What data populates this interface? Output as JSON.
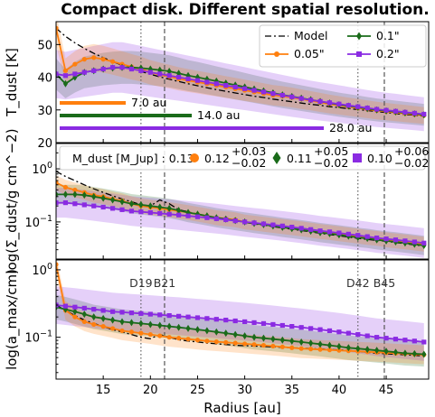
{
  "title": "Compact disk. Different spatial resolution.",
  "xlabel": "Radius [au]",
  "x_ticks": [
    "15",
    "20",
    "25",
    "30",
    "35",
    "40",
    "45"
  ],
  "colors": {
    "model": "#000000",
    "res005": "#ff7f0e",
    "res01": "#1a6b1a",
    "res02": "#8a2be2"
  },
  "legend": {
    "model": "Model",
    "res005": "0.05\"",
    "res01": "0.1\"",
    "res02": "0.2\""
  },
  "resolution_bars": [
    {
      "label": "7.0 au",
      "color_key": "res005",
      "length_au": 7.0
    },
    {
      "label": "14.0 au",
      "color_key": "res01",
      "length_au": 14.0
    },
    {
      "label": "28.0 au",
      "color_key": "res02",
      "length_au": 28.0
    }
  ],
  "gaps": [
    {
      "label": "D19",
      "r": 19.0,
      "style": "dotted"
    },
    {
      "label": "B21",
      "r": 21.5,
      "style": "dashed"
    },
    {
      "label": "D42",
      "r": 42.0,
      "style": "dotted"
    },
    {
      "label": "B45",
      "r": 44.8,
      "style": "dashed"
    }
  ],
  "mass_legend": {
    "model_label": "M_dust [M_Jup] : 0.13",
    "res005": {
      "value": "0.12",
      "plus": "+0.03",
      "minus": "−0.02"
    },
    "res01": {
      "value": "0.11",
      "plus": "+0.05",
      "minus": "−0.02"
    },
    "res02": {
      "value": "0.10",
      "plus": "+0.06",
      "minus": "−0.02"
    }
  },
  "chart_data": [
    {
      "type": "line",
      "panel": "temperature",
      "ylabel": "T_dust [K]",
      "xlim": [
        10,
        49.5
      ],
      "ylim": [
        20,
        57
      ],
      "yscale": "linear",
      "y_ticks": [
        "20",
        "30",
        "40",
        "50"
      ],
      "series": [
        {
          "name": "Model",
          "x": [
            10,
            11,
            12,
            13,
            14,
            15,
            16,
            17,
            18,
            19,
            20,
            21,
            22,
            23,
            24,
            25,
            26,
            27,
            28,
            29,
            30,
            31,
            32,
            33,
            34,
            35,
            36,
            37,
            38,
            39,
            40,
            41,
            42,
            43,
            44,
            45,
            46,
            47,
            48,
            49
          ],
          "y": [
            55,
            52.5,
            50.5,
            48.8,
            47.3,
            46.0,
            44.8,
            43.7,
            42.7,
            41.8,
            40.9,
            40.1,
            39.4,
            38.7,
            38.0,
            37.4,
            36.8,
            36.2,
            35.7,
            35.2,
            34.7,
            34.2,
            33.8,
            33.3,
            32.9,
            32.5,
            32.1,
            31.7,
            31.4,
            31.0,
            30.7,
            30.4,
            30.1,
            29.8,
            29.5,
            29.2,
            28.9,
            28.6,
            28.4,
            28.1
          ]
        },
        {
          "name": "0.05\"",
          "x": [
            10,
            11,
            12,
            13,
            14,
            15,
            16,
            17,
            18,
            19,
            20,
            21,
            22,
            23,
            24,
            25,
            26,
            27,
            28,
            29,
            30,
            31,
            32,
            33,
            34,
            35,
            36,
            37,
            38,
            39,
            40,
            41,
            42,
            43,
            44,
            45,
            46,
            47,
            48,
            49
          ],
          "y": [
            55,
            42,
            44,
            45.5,
            46,
            45.5,
            44.8,
            44,
            43.2,
            42.5,
            41.5,
            40.8,
            40.2,
            39.5,
            39,
            38.5,
            38,
            37.5,
            37,
            36.5,
            36,
            35.5,
            35,
            34.5,
            34.2,
            33.8,
            33.3,
            32.8,
            32.3,
            31.8,
            31.4,
            31,
            30.6,
            30.2,
            29.8,
            29.5,
            29.2,
            28.9,
            28.6,
            28.3
          ]
        },
        {
          "name": "0.1\"",
          "x": [
            10,
            11,
            12,
            13,
            14,
            15,
            16,
            17,
            18,
            19,
            20,
            21,
            22,
            23,
            24,
            25,
            26,
            27,
            28,
            29,
            30,
            31,
            32,
            33,
            34,
            35,
            36,
            37,
            38,
            39,
            40,
            41,
            42,
            43,
            44,
            45,
            46,
            47,
            48,
            49
          ],
          "y": [
            41,
            38,
            40,
            41.5,
            42,
            42.5,
            42.8,
            43,
            43,
            42.8,
            42.5,
            42.2,
            41.8,
            41.2,
            40.5,
            40,
            39.4,
            38.8,
            38.2,
            37.6,
            37,
            36.4,
            35.8,
            35.2,
            34.6,
            34.1,
            33.6,
            33.1,
            32.6,
            32.1,
            31.6,
            31.2,
            30.8,
            30.4,
            30,
            29.7,
            29.4,
            29.1,
            28.8,
            28.5
          ]
        },
        {
          "name": "0.2\"",
          "x": [
            10,
            11,
            12,
            13,
            14,
            15,
            16,
            17,
            18,
            19,
            20,
            21,
            22,
            23,
            24,
            25,
            26,
            27,
            28,
            29,
            30,
            31,
            32,
            33,
            34,
            35,
            36,
            37,
            38,
            39,
            40,
            41,
            42,
            43,
            44,
            45,
            46,
            47,
            48,
            49
          ],
          "y": [
            41,
            40.5,
            41,
            41.5,
            42,
            42.5,
            43,
            43,
            42.5,
            42,
            41.5,
            41,
            40.5,
            40,
            39.5,
            39,
            38.5,
            38,
            37.5,
            37,
            36.5,
            36,
            35.5,
            35,
            34.5,
            34,
            33.5,
            33,
            32.6,
            32.2,
            31.8,
            31.4,
            31,
            30.6,
            30.2,
            29.9,
            29.6,
            29.3,
            29,
            28.7
          ]
        }
      ]
    },
    {
      "type": "line",
      "panel": "surface_density",
      "ylabel": "log(Σ_dust/g cm^−2)",
      "xlim": [
        10,
        49.5
      ],
      "ylim": [
        0.02,
        3
      ],
      "yscale": "log",
      "y_ticks": [
        "10^0",
        "10^−1"
      ],
      "series": [
        {
          "name": "Model",
          "x": [
            10,
            11,
            12,
            13,
            14,
            15,
            16,
            17,
            18,
            19,
            20,
            21,
            22,
            23,
            24,
            25,
            26,
            27,
            28,
            29,
            30,
            31,
            32,
            33,
            34,
            35,
            36,
            37,
            38,
            39,
            40,
            41,
            42,
            43,
            44,
            45,
            46,
            47,
            48,
            49
          ],
          "y": [
            0.9,
            0.72,
            0.6,
            0.5,
            0.42,
            0.36,
            0.31,
            0.27,
            0.24,
            0.21,
            0.2,
            0.26,
            0.22,
            0.17,
            0.155,
            0.14,
            0.13,
            0.12,
            0.112,
            0.105,
            0.098,
            0.092,
            0.087,
            0.082,
            0.077,
            0.073,
            0.069,
            0.065,
            0.061,
            0.058,
            0.055,
            0.052,
            0.049,
            0.047,
            0.045,
            0.043,
            0.041,
            0.039,
            0.037,
            0.035
          ]
        },
        {
          "name": "0.05\"",
          "x": [
            10,
            11,
            12,
            13,
            14,
            15,
            16,
            17,
            18,
            19,
            20,
            21,
            22,
            23,
            24,
            25,
            26,
            27,
            28,
            29,
            30,
            31,
            32,
            33,
            34,
            35,
            36,
            37,
            38,
            39,
            40,
            41,
            42,
            43,
            44,
            45,
            46,
            47,
            48,
            49
          ],
          "y": [
            0.55,
            0.45,
            0.4,
            0.36,
            0.32,
            0.3,
            0.27,
            0.25,
            0.22,
            0.2,
            0.19,
            0.18,
            0.17,
            0.16,
            0.15,
            0.14,
            0.13,
            0.12,
            0.115,
            0.11,
            0.1,
            0.095,
            0.09,
            0.086,
            0.082,
            0.078,
            0.074,
            0.07,
            0.066,
            0.063,
            0.06,
            0.057,
            0.054,
            0.051,
            0.049,
            0.046,
            0.044,
            0.042,
            0.04,
            0.038
          ]
        },
        {
          "name": "0.1\"",
          "x": [
            10,
            11,
            12,
            13,
            14,
            15,
            16,
            17,
            18,
            19,
            20,
            21,
            22,
            23,
            24,
            25,
            26,
            27,
            28,
            29,
            30,
            31,
            32,
            33,
            34,
            35,
            36,
            37,
            38,
            39,
            40,
            41,
            42,
            43,
            44,
            45,
            46,
            47,
            48,
            49
          ],
          "y": [
            0.33,
            0.33,
            0.33,
            0.32,
            0.3,
            0.28,
            0.26,
            0.24,
            0.22,
            0.21,
            0.2,
            0.19,
            0.18,
            0.165,
            0.15,
            0.14,
            0.13,
            0.12,
            0.113,
            0.106,
            0.1,
            0.094,
            0.089,
            0.084,
            0.079,
            0.075,
            0.071,
            0.067,
            0.063,
            0.06,
            0.057,
            0.054,
            0.051,
            0.049,
            0.046,
            0.044,
            0.042,
            0.04,
            0.038,
            0.036
          ]
        },
        {
          "name": "0.2\"",
          "x": [
            10,
            11,
            12,
            13,
            14,
            15,
            16,
            17,
            18,
            19,
            20,
            21,
            22,
            23,
            24,
            25,
            26,
            27,
            28,
            29,
            30,
            31,
            32,
            33,
            34,
            35,
            36,
            37,
            38,
            39,
            40,
            41,
            42,
            43,
            44,
            45,
            46,
            47,
            48,
            49
          ],
          "y": [
            0.23,
            0.23,
            0.22,
            0.21,
            0.2,
            0.19,
            0.18,
            0.17,
            0.16,
            0.155,
            0.15,
            0.145,
            0.14,
            0.135,
            0.13,
            0.125,
            0.12,
            0.115,
            0.11,
            0.105,
            0.1,
            0.096,
            0.092,
            0.088,
            0.084,
            0.08,
            0.076,
            0.072,
            0.068,
            0.065,
            0.062,
            0.059,
            0.056,
            0.053,
            0.05,
            0.048,
            0.046,
            0.044,
            0.042,
            0.04
          ]
        }
      ]
    },
    {
      "type": "line",
      "panel": "max_grain_size",
      "ylabel": "log(a_max/cm)",
      "xlim": [
        10,
        49.5
      ],
      "ylim": [
        0.024,
        1.4
      ],
      "yscale": "log",
      "y_ticks": [
        "10^0",
        "10^−1"
      ],
      "series": [
        {
          "name": "Model",
          "x": [
            10,
            11,
            12,
            13,
            14,
            15,
            16,
            17,
            18,
            19,
            20,
            21,
            22,
            23,
            24,
            25,
            26,
            27,
            28,
            29,
            30,
            31,
            32,
            33,
            34,
            35,
            36,
            37,
            38,
            39,
            40,
            41,
            42,
            43,
            44,
            45,
            46,
            47,
            48,
            49
          ],
          "y": [
            0.3,
            0.25,
            0.21,
            0.18,
            0.16,
            0.145,
            0.13,
            0.12,
            0.11,
            0.1,
            0.095,
            0.11,
            0.1,
            0.092,
            0.088,
            0.085,
            0.082,
            0.08,
            0.078,
            0.076,
            0.075,
            0.074,
            0.073,
            0.072,
            0.071,
            0.07,
            0.069,
            0.068,
            0.067,
            0.066,
            0.065,
            0.064,
            0.062,
            0.06,
            0.058,
            0.057,
            0.056,
            0.055,
            0.054,
            0.053
          ]
        },
        {
          "name": "0.05\"",
          "x": [
            10,
            11,
            12,
            13,
            14,
            15,
            16,
            17,
            18,
            19,
            20,
            21,
            22,
            23,
            24,
            25,
            26,
            27,
            28,
            29,
            30,
            31,
            32,
            33,
            34,
            35,
            36,
            37,
            38,
            39,
            40,
            41,
            42,
            43,
            44,
            45,
            46,
            47,
            48,
            49
          ],
          "y": [
            1.2,
            0.25,
            0.2,
            0.17,
            0.155,
            0.145,
            0.135,
            0.125,
            0.12,
            0.115,
            0.11,
            0.105,
            0.1,
            0.097,
            0.094,
            0.091,
            0.088,
            0.086,
            0.084,
            0.082,
            0.08,
            0.078,
            0.076,
            0.074,
            0.072,
            0.07,
            0.068,
            0.067,
            0.066,
            0.065,
            0.064,
            0.063,
            0.062,
            0.061,
            0.06,
            0.059,
            0.058,
            0.057,
            0.056,
            0.055
          ]
        },
        {
          "name": "0.1\"",
          "x": [
            10,
            11,
            12,
            13,
            14,
            15,
            16,
            17,
            18,
            19,
            20,
            21,
            22,
            23,
            24,
            25,
            26,
            27,
            28,
            29,
            30,
            31,
            32,
            33,
            34,
            35,
            36,
            37,
            38,
            39,
            40,
            41,
            42,
            43,
            44,
            45,
            46,
            47,
            48,
            49
          ],
          "y": [
            0.28,
            0.26,
            0.24,
            0.22,
            0.2,
            0.19,
            0.18,
            0.17,
            0.165,
            0.16,
            0.155,
            0.15,
            0.145,
            0.14,
            0.135,
            0.13,
            0.125,
            0.12,
            0.115,
            0.11,
            0.105,
            0.1,
            0.097,
            0.094,
            0.091,
            0.088,
            0.085,
            0.082,
            0.079,
            0.076,
            0.073,
            0.07,
            0.068,
            0.066,
            0.064,
            0.062,
            0.06,
            0.058,
            0.057,
            0.056
          ]
        },
        {
          "name": "0.2\"",
          "x": [
            10,
            11,
            12,
            13,
            14,
            15,
            16,
            17,
            18,
            19,
            20,
            21,
            22,
            23,
            24,
            25,
            26,
            27,
            28,
            29,
            30,
            31,
            32,
            33,
            34,
            35,
            36,
            37,
            38,
            39,
            40,
            41,
            42,
            43,
            44,
            45,
            46,
            47,
            48,
            49
          ],
          "y": [
            0.3,
            0.29,
            0.28,
            0.27,
            0.26,
            0.25,
            0.24,
            0.235,
            0.23,
            0.225,
            0.22,
            0.215,
            0.21,
            0.205,
            0.2,
            0.195,
            0.19,
            0.185,
            0.18,
            0.175,
            0.17,
            0.165,
            0.16,
            0.155,
            0.15,
            0.145,
            0.14,
            0.135,
            0.13,
            0.125,
            0.12,
            0.115,
            0.11,
            0.105,
            0.1,
            0.097,
            0.094,
            0.091,
            0.088,
            0.085
          ]
        }
      ]
    }
  ]
}
